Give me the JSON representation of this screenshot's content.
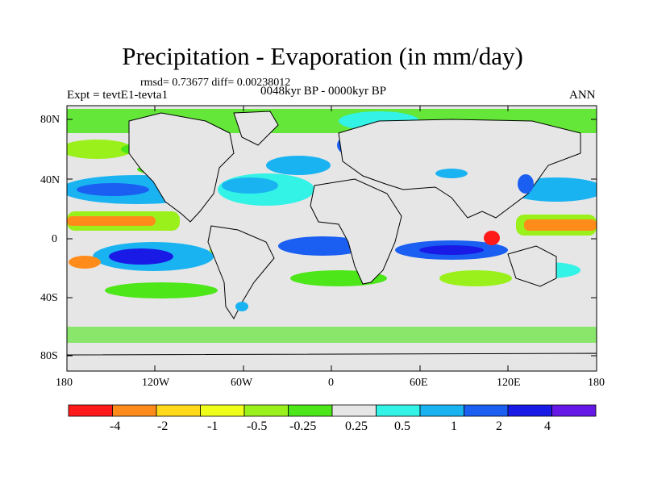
{
  "title": "Precipitation - Evaporation (in mm/day)",
  "stats": "rmsd= 0.73677  diff= 0.00238012",
  "experiment": "Expt = tevtE1-tevta1",
  "period": "0048kyr BP - 0000kyr BP",
  "season": "ANN",
  "lat_labels": [
    "80N",
    "40N",
    "0",
    "40S",
    "80S"
  ],
  "lon_labels": [
    "180",
    "120W",
    "60W",
    "0",
    "60E",
    "120E",
    "180"
  ],
  "colorbar": {
    "colors": [
      "#ff1a1a",
      "#ff8c1a",
      "#ffd91a",
      "#f0ff1a",
      "#9af01a",
      "#4ce619",
      "#e6e6e6",
      "#33f2e6",
      "#1ab3f2",
      "#1a5ff2",
      "#1a1ae6",
      "#6619e6"
    ],
    "labels": [
      "-4",
      "-2",
      "-1",
      "-0.5",
      "-0.25",
      "0.25",
      "0.5",
      "1",
      "2",
      "4"
    ]
  },
  "colors": {
    "land": "#e6e6e6",
    "coast": "#000000"
  }
}
